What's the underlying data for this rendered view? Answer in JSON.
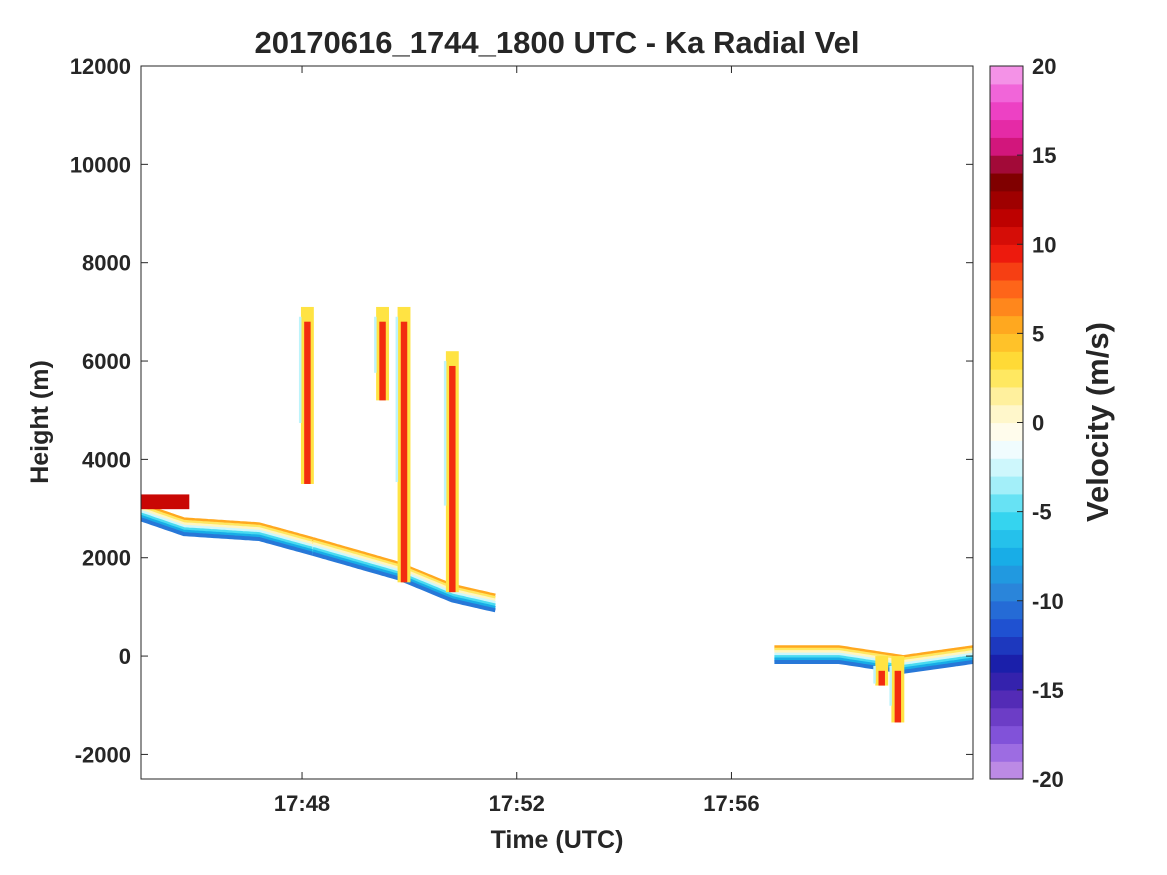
{
  "chart_data": {
    "type": "heatmap",
    "title": "20170616_1744_1800 UTC - Ka Radial Vel",
    "xlabel": "Time (UTC)",
    "ylabel": "Height (m)",
    "xlim_minutes": [
      45,
      60.5
    ],
    "xticks": [
      {
        "minute": 48,
        "label": "17:48"
      },
      {
        "minute": 52,
        "label": "17:52"
      },
      {
        "minute": 56,
        "label": "17:56"
      }
    ],
    "ylim": [
      -2500,
      12000
    ],
    "yticks": [
      -2000,
      0,
      2000,
      4000,
      6000,
      8000,
      10000,
      12000
    ],
    "colorbar": {
      "label": "Velocity (m/s)",
      "range": [
        -20,
        20
      ],
      "ticks": [
        -20,
        -15,
        -10,
        -5,
        0,
        5,
        10,
        15,
        20
      ],
      "stops": [
        "#cc99e6",
        "#8a5ae0",
        "#5c2eb8",
        "#1a1aa6",
        "#1f4fd1",
        "#2a86da",
        "#17b0e8",
        "#39d8f0",
        "#b8f3fb",
        "#ffffff",
        "#fff4b8",
        "#ffe23a",
        "#ffb020",
        "#ff6a1a",
        "#ee1a0d",
        "#bb0000",
        "#7a0000",
        "#e01a90",
        "#f04ad0",
        "#f5a8ee"
      ]
    },
    "features": [
      {
        "name": "descending band",
        "start_minute": 45.0,
        "end_minute": 48.2,
        "heights_m": [
          2900,
          2600,
          2550,
          2500,
          2200
        ],
        "minutes": [
          45.0,
          45.8,
          46.5,
          47.2,
          48.2
        ]
      },
      {
        "name": "descending band",
        "start_minute": 48.2,
        "end_minute": 51.6,
        "heights_m": [
          2200,
          1700,
          1250,
          1050
        ],
        "minutes": [
          48.2,
          49.8,
          50.8,
          51.6
        ]
      },
      {
        "name": "near-surface band",
        "start_minute": 56.8,
        "end_minute": 60.5,
        "heights_m": [
          0,
          0,
          -200,
          0
        ],
        "minutes": [
          56.8,
          58.0,
          59.2,
          60.5
        ]
      },
      {
        "name": "fall streak",
        "minute": 48.1,
        "top_m": 7100,
        "bottom_m": 3500
      },
      {
        "name": "fall streak",
        "minute": 49.5,
        "top_m": 7100,
        "bottom_m": 5200
      },
      {
        "name": "fall streak",
        "minute": 49.9,
        "top_m": 7100,
        "bottom_m": 1500
      },
      {
        "name": "fall streak",
        "minute": 50.8,
        "top_m": 6200,
        "bottom_m": 1300
      },
      {
        "name": "surface dip",
        "minute": 58.8,
        "top_m": 0,
        "bottom_m": -600
      },
      {
        "name": "surface dip",
        "minute": 59.1,
        "top_m": 0,
        "bottom_m": -1350
      }
    ]
  }
}
